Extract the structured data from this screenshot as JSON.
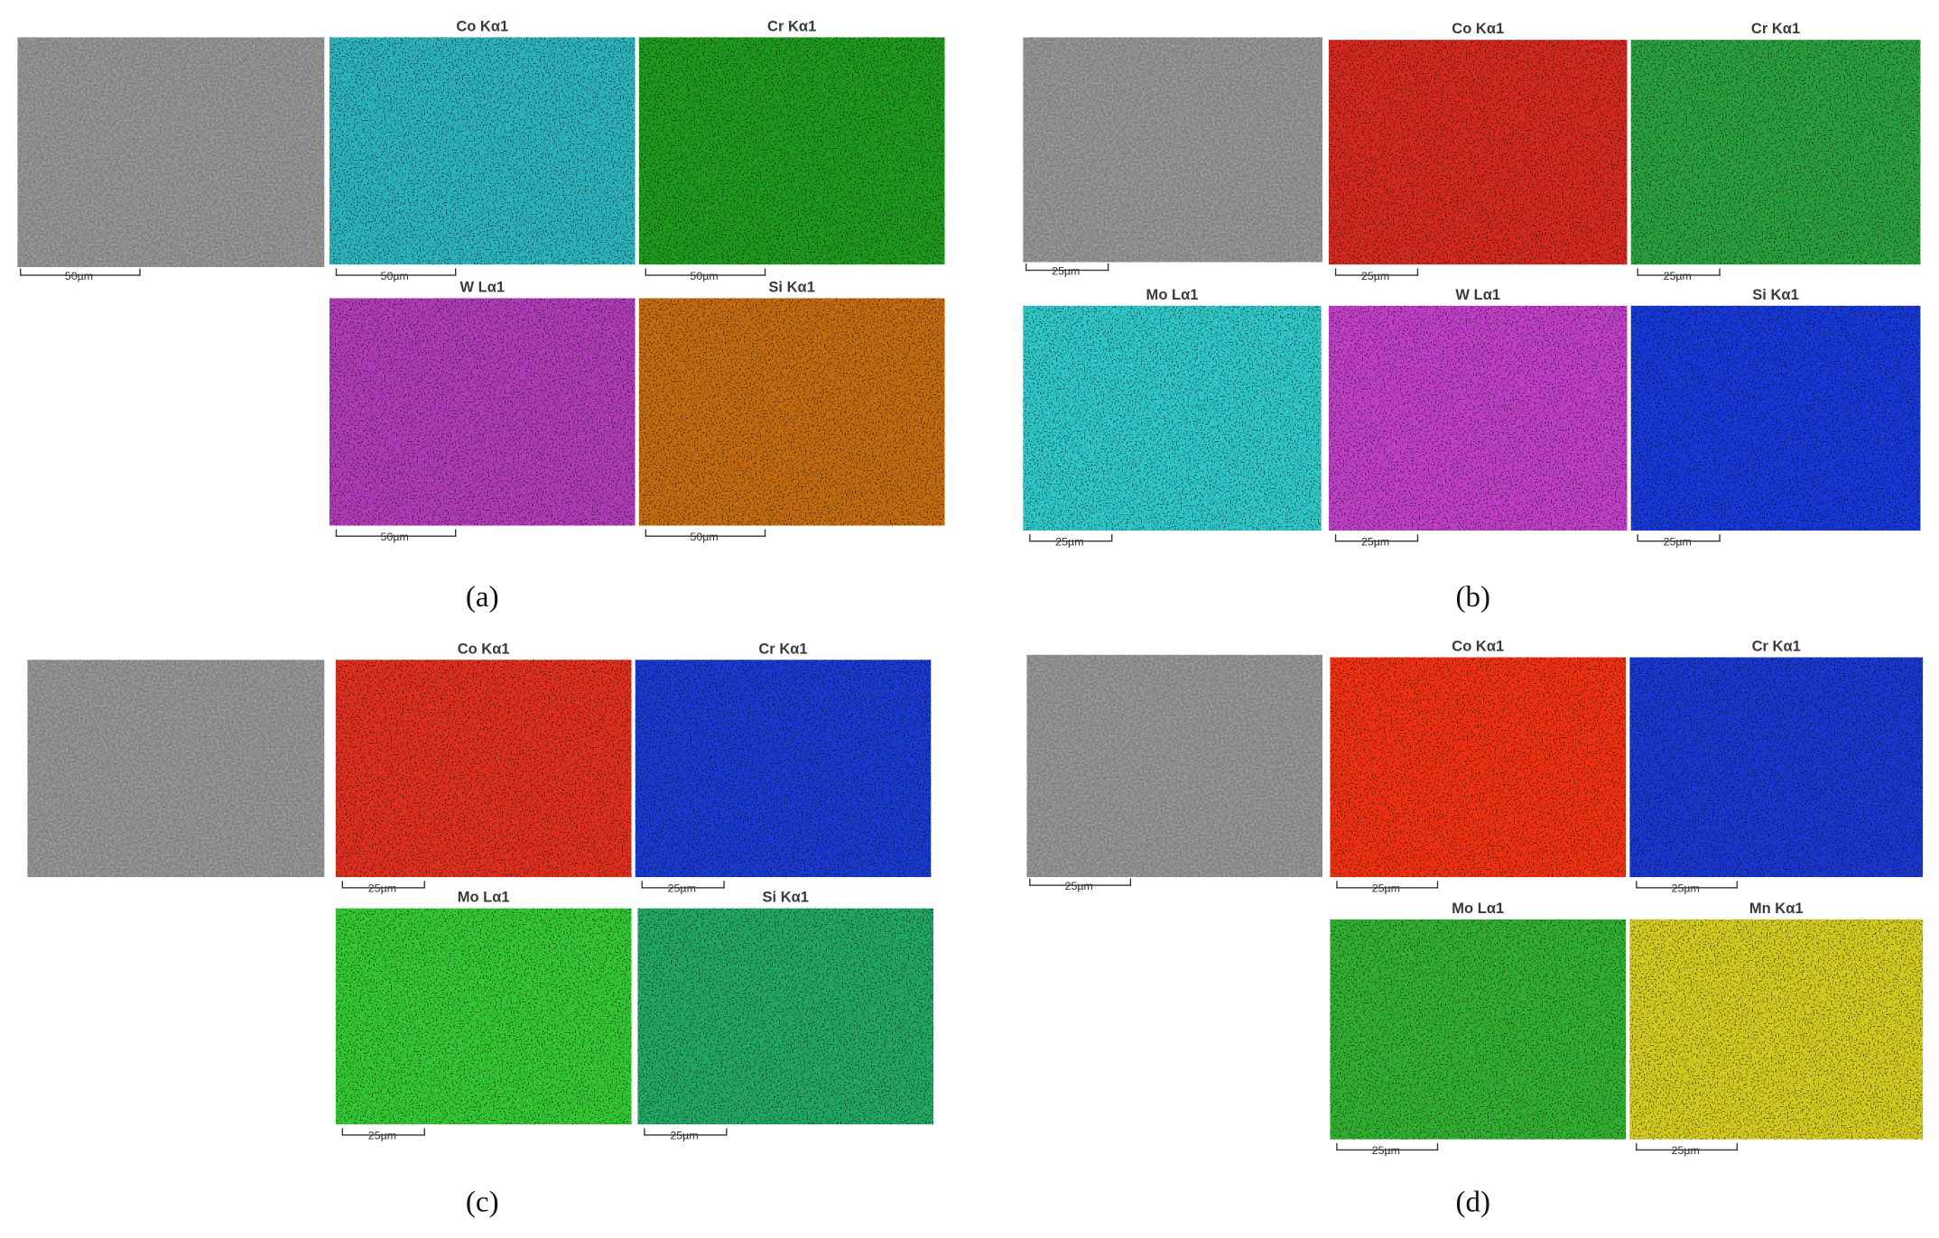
{
  "panels": [
    {
      "caption": "(a)",
      "sem": {
        "scale": "50µm"
      },
      "maps": [
        {
          "title": "Co Kα1",
          "scale": "50µm",
          "color": "#2db4bc"
        },
        {
          "title": "Cr Kα1",
          "scale": "50µm",
          "color": "#1f9a1f"
        },
        {
          "title": "W Lα1",
          "scale": "50µm",
          "color": "#b03cb8"
        },
        {
          "title": "Si Kα1",
          "scale": "50µm",
          "color": "#c46c10"
        }
      ]
    },
    {
      "caption": "(b)",
      "sem": {
        "scale": "25µm"
      },
      "maps": [
        {
          "title": "Co Kα1",
          "scale": "25µm",
          "color": "#d42a20"
        },
        {
          "title": "Cr Kα1",
          "scale": "25µm",
          "color": "#2aa040"
        },
        {
          "title": "Mo Lα1",
          "scale": "25µm",
          "color": "#30c8c8"
        },
        {
          "title": "W Lα1",
          "scale": "25µm",
          "color": "#c040c8"
        },
        {
          "title": "Si Kα1",
          "scale": "25µm",
          "color": "#1838d8"
        }
      ]
    },
    {
      "caption": "(c)",
      "sem": {},
      "maps": [
        {
          "title": "Co Kα1",
          "scale": "25µm",
          "color": "#e03020"
        },
        {
          "title": "Cr Kα1",
          "scale": "25µm",
          "color": "#1a3ad0"
        },
        {
          "title": "Mo Lα1",
          "scale": "25µm",
          "color": "#34c834"
        },
        {
          "title": "Si Kα1",
          "scale": "25µm",
          "color": "#22a862"
        }
      ]
    },
    {
      "caption": "(d)",
      "sem": {
        "scale": "25µm"
      },
      "maps": [
        {
          "title": "Co Kα1",
          "scale": "25µm",
          "color": "#f03212"
        },
        {
          "title": "Cr Kα1",
          "scale": "25µm",
          "color": "#1a38d0"
        },
        {
          "title": "Mo Lα1",
          "scale": "25µm",
          "color": "#32b032"
        },
        {
          "title": "Mn Kα1",
          "scale": "25µm",
          "color": "#d4cc20"
        }
      ]
    }
  ]
}
